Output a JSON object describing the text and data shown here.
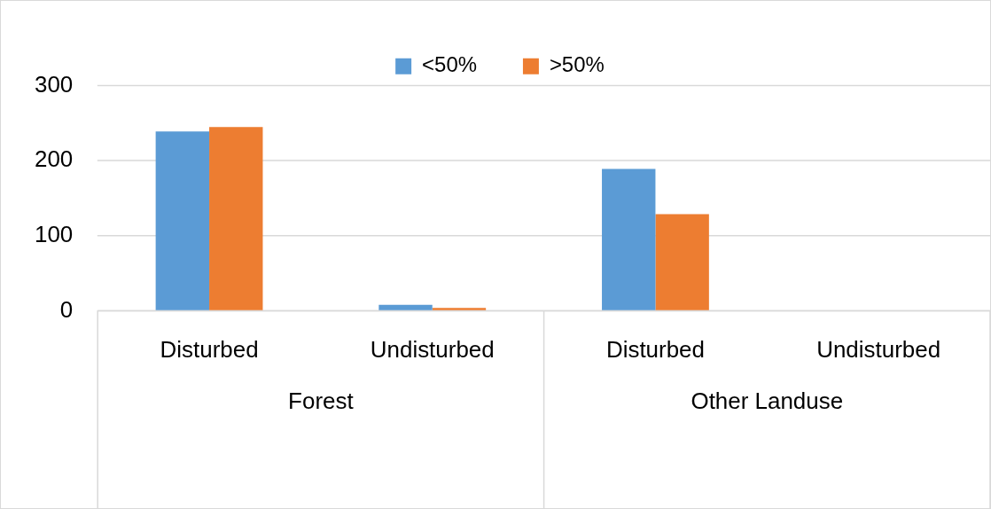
{
  "chart_data": {
    "type": "bar",
    "categories": [
      "Disturbed",
      "Undisturbed",
      "Disturbed",
      "Undisturbed"
    ],
    "series": [
      {
        "name": "<50%",
        "color": "#5b9bd5",
        "values": [
          239,
          8,
          189,
          0
        ]
      },
      {
        "name": ">50%",
        "color": "#ed7d31",
        "values": [
          245,
          4,
          129,
          0
        ]
      }
    ],
    "annotations": [
      "Forest",
      "Other Landuse"
    ],
    "ylim": [
      0,
      300
    ],
    "yticks": [
      0,
      100,
      200,
      300
    ],
    "grid": "y",
    "legend": "top"
  }
}
